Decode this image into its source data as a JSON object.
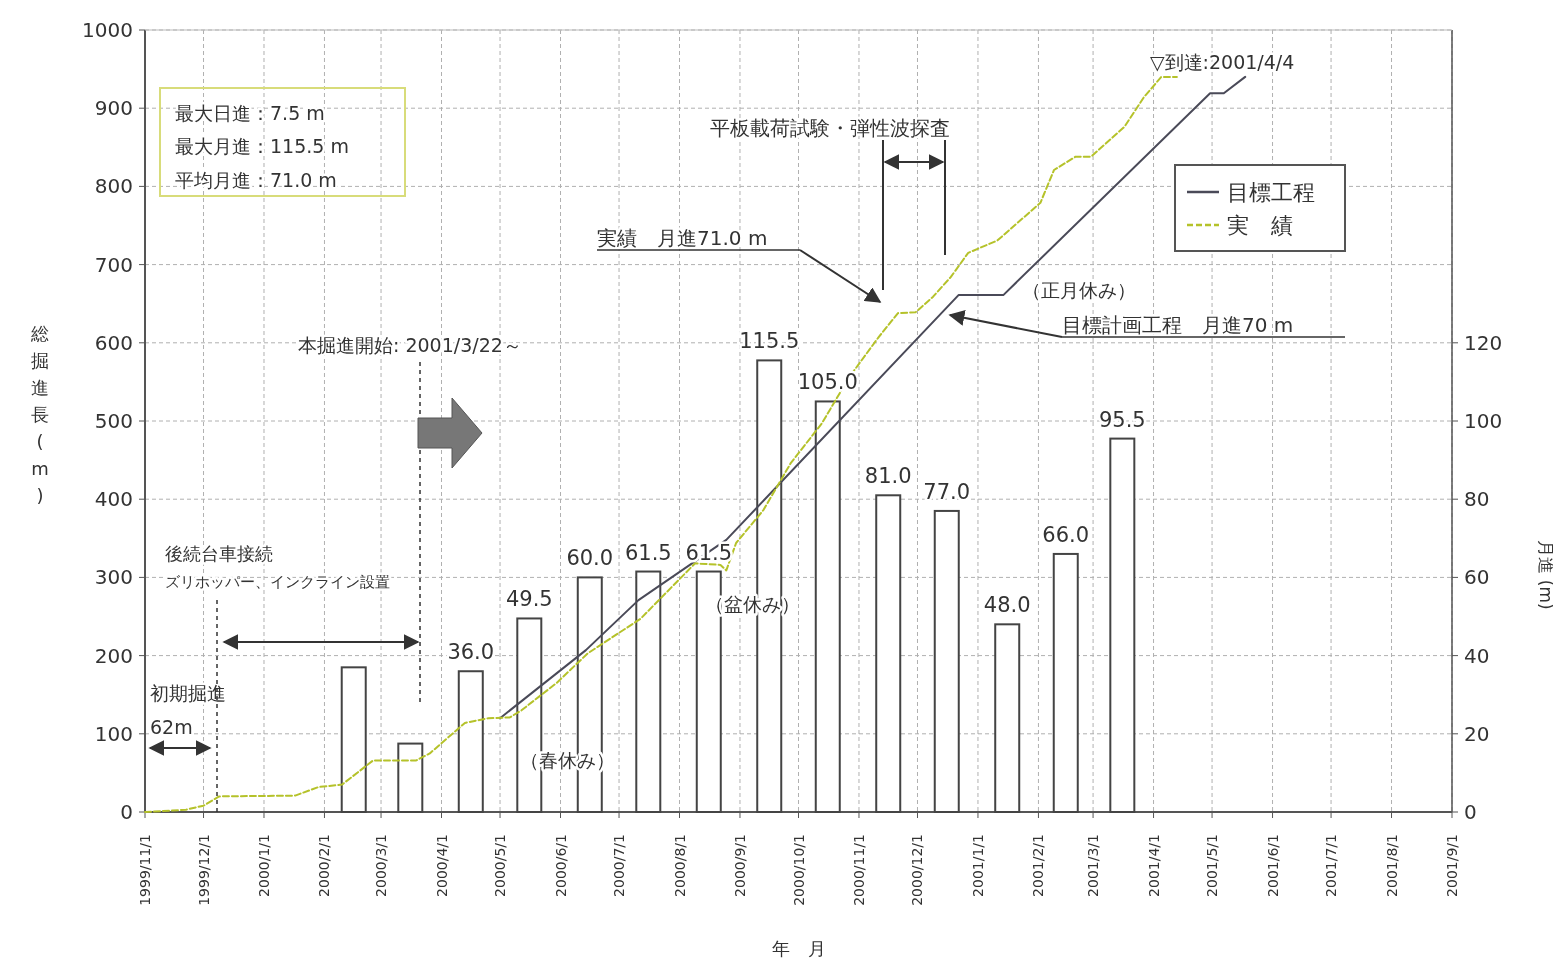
{
  "chart_data": {
    "type": "line",
    "xlabel": "年　月",
    "ylabel": "総掘進長 (m)",
    "y2label": "月進 (m)",
    "xlim": [
      "1999-11-01",
      "2001-09-01"
    ],
    "xticks": [
      {
        "value": "1999-11-01",
        "label": "1999/11/1"
      },
      {
        "value": "1999-12-01",
        "label": "1999/12/1"
      },
      {
        "value": "2000-01-01",
        "label": "2000/1/1"
      },
      {
        "value": "2000-02-01",
        "label": "2000/2/1"
      },
      {
        "value": "2000-03-01",
        "label": "2000/3/1"
      },
      {
        "value": "2000-04-01",
        "label": "2000/4/1"
      },
      {
        "value": "2000-05-01",
        "label": "2000/5/1"
      },
      {
        "value": "2000-06-01",
        "label": "2000/6/1"
      },
      {
        "value": "2000-07-01",
        "label": "2000/7/1"
      },
      {
        "value": "2000-08-01",
        "label": "2000/8/1"
      },
      {
        "value": "2000-09-01",
        "label": "2000/9/1"
      },
      {
        "value": "2000-10-01",
        "label": "2000/10/1"
      },
      {
        "value": "2000-11-01",
        "label": "2000/11/1"
      },
      {
        "value": "2000-12-01",
        "label": "2000/12/1"
      },
      {
        "value": "2001-01-01",
        "label": "2001/1/1"
      },
      {
        "value": "2001-02-01",
        "label": "2001/2/1"
      },
      {
        "value": "2001-03-01",
        "label": "2001/3/1"
      },
      {
        "value": "2001-04-01",
        "label": "2001/4/1"
      },
      {
        "value": "2001-05-01",
        "label": "2001/5/1"
      },
      {
        "value": "2001-06-01",
        "label": "2001/6/1"
      },
      {
        "value": "2001-07-01",
        "label": "2001/7/1"
      },
      {
        "value": "2001-08-01",
        "label": "2001/8/1"
      },
      {
        "value": "2001-09-01",
        "label": "2001/9/1"
      }
    ],
    "ylim": [
      0,
      1000
    ],
    "yticks": [
      0,
      100,
      200,
      300,
      400,
      500,
      600,
      700,
      800,
      900,
      1000
    ],
    "y2lim": [
      0,
      200
    ],
    "y2ticks": [
      0,
      20,
      40,
      60,
      80,
      100,
      120
    ],
    "grid": true,
    "legend": "top right",
    "marker": "none",
    "series": [
      {
        "type": "bar",
        "axis": "y2",
        "color": "#ffffff",
        "x": [
          "2000-02-16",
          "2000-03-16",
          "2000-04-16",
          "2000-05-16",
          "2000-06-16",
          "2000-07-16",
          "2000-08-16",
          "2000-09-16",
          "2000-10-16",
          "2000-11-16",
          "2000-12-16",
          "2001-01-16",
          "2001-02-15",
          "2001-03-16"
        ],
        "values": [
          37,
          17.5,
          36.0,
          49.5,
          60.0,
          61.5,
          61.5,
          115.5,
          105.0,
          81.0,
          77.0,
          48.0,
          66.0,
          95.5
        ],
        "value_labels": [
          null,
          null,
          "36.0",
          "49.5",
          "60.0",
          "61.5",
          "61.5",
          "115.5",
          "105.0",
          "81.0",
          "77.0",
          "48.0",
          "66.0",
          "95.5"
        ]
      },
      {
        "name": "目標工程",
        "color": "#4a4a58",
        "line_style": "solid",
        "x": [
          "2000-05-01",
          "2000-06-14",
          "2000-07-11",
          "2000-08-25",
          "2000-12-22",
          "2001-01-14",
          "2001-04-30",
          "2001-05-07",
          "2001-05-18"
        ],
        "values": [
          120,
          207,
          271,
          348,
          661,
          661,
          919,
          919,
          940
        ]
      },
      {
        "name": "実　績",
        "color": "#b5c22a",
        "line_style": "dashed",
        "x": [
          "1999-11-01",
          "1999-11-22",
          "1999-12-01",
          "1999-12-09",
          "2000-01-17",
          "2000-01-29",
          "2000-02-10",
          "2000-02-26",
          "2000-03-19",
          "2000-03-26",
          "2000-04-13",
          "2000-04-25",
          "2000-05-06",
          "2000-05-12",
          "2000-05-30",
          "2000-06-15",
          "2000-07-12",
          "2000-08-09",
          "2000-08-22",
          "2000-08-25",
          "2000-08-30",
          "2000-09-13",
          "2000-09-27",
          "2000-10-13",
          "2000-10-27",
          "2000-11-11",
          "2000-11-21",
          "2000-11-30",
          "2000-12-09",
          "2000-12-18",
          "2000-12-27",
          "2001-01-11",
          "2001-02-02",
          "2001-02-09",
          "2001-02-20",
          "2001-02-28",
          "2001-03-17",
          "2001-03-27",
          "2001-04-05",
          "2001-04-13"
        ],
        "values": [
          0,
          3,
          8,
          20,
          21,
          32,
          35,
          66,
          66,
          75,
          114,
          120,
          121,
          130,
          165,
          203,
          247,
          318,
          316,
          309,
          344,
          386,
          446,
          497,
          556,
          607,
          638,
          639,
          659,
          684,
          715,
          731,
          779,
          821,
          838,
          838,
          876,
          914,
          940,
          940
        ]
      }
    ],
    "annotations": [
      "最大日進：7.5 m",
      "最大月進：115.5 m",
      "平均月進：71.0 m",
      "本掘進開始: 2001/3/22～",
      "後続台車接続",
      "ズリホッパー、インクライン設置",
      "初期掘進",
      "62m",
      "（春休み）",
      "（盆休み）",
      "実績　月進71.0 m",
      "平板載荷試験・弾性波探査",
      "▽到達:2001/4/4",
      "（正月休み）",
      "目標計画工程　月進70 m"
    ]
  }
}
